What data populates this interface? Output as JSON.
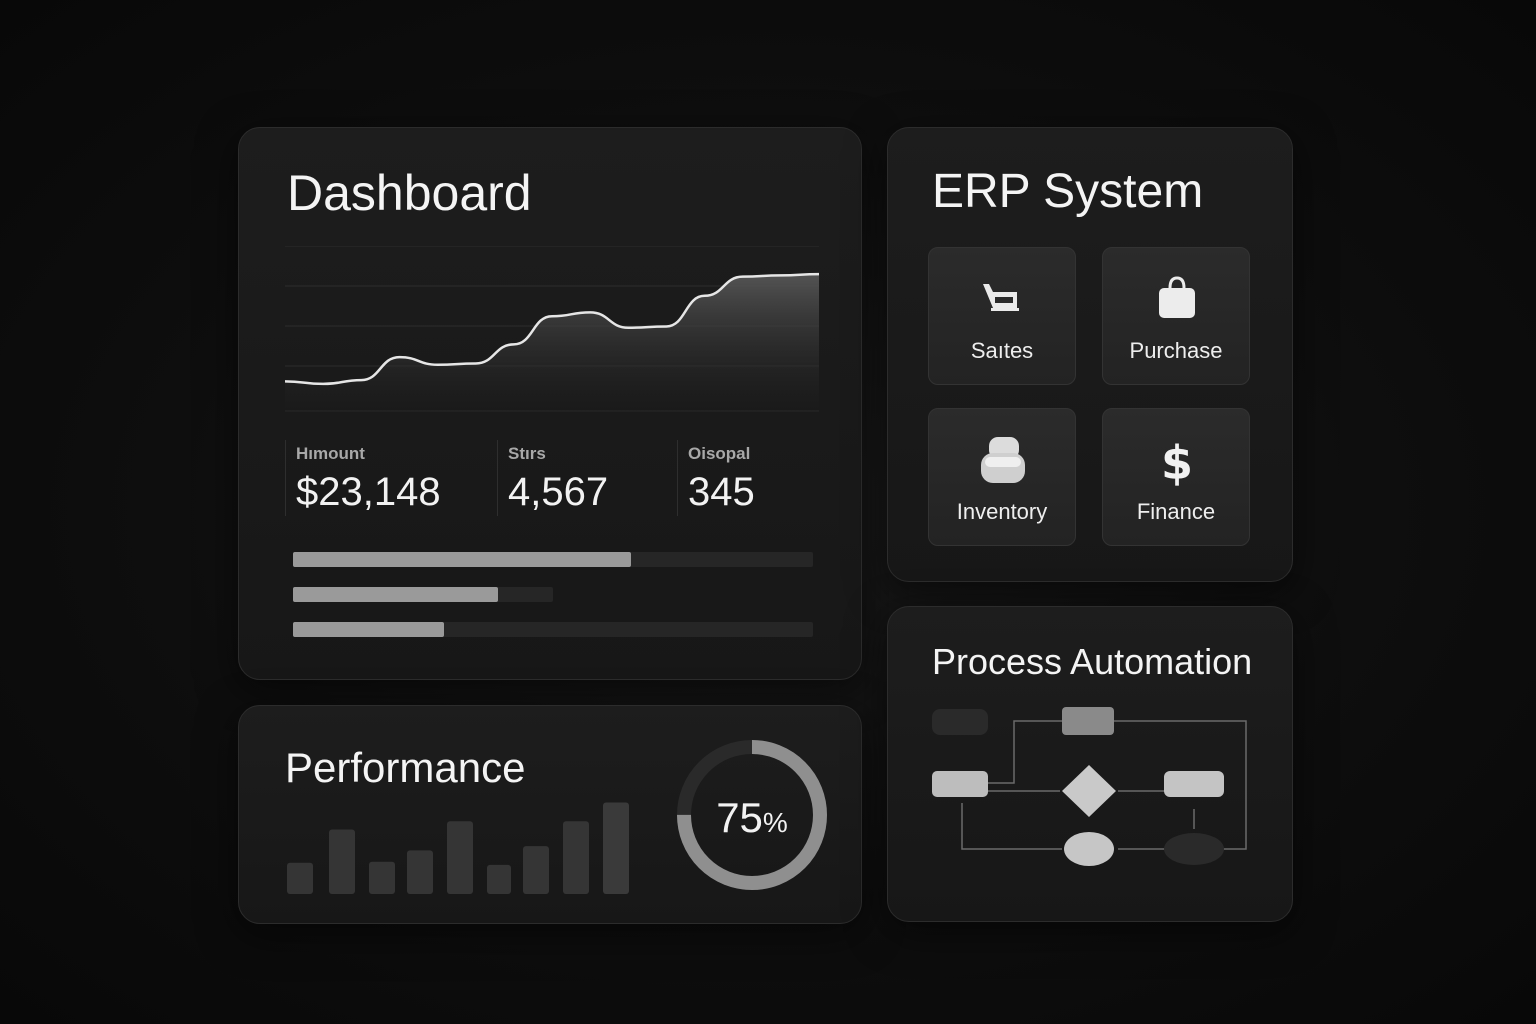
{
  "dashboard": {
    "title": "Dashboard",
    "stats": [
      {
        "label": "Hımount",
        "value": "$23,148"
      },
      {
        "label": "Stırs",
        "value": "4,567"
      },
      {
        "label": "Oisopal",
        "value": "345"
      }
    ],
    "progress": [
      0.65,
      0.79,
      0.29
    ],
    "chart_data": {
      "type": "area",
      "x": [
        0,
        1,
        2,
        3,
        4,
        5,
        6,
        7,
        8,
        9,
        10,
        11,
        12,
        13,
        14
      ],
      "values": [
        24,
        22,
        25,
        43,
        37,
        38,
        53,
        75,
        78,
        66,
        67,
        91,
        106,
        107,
        108
      ],
      "title": "",
      "xlabel": "",
      "ylabel": "",
      "ylim": [
        0,
        130
      ],
      "grid": true
    }
  },
  "erp": {
    "title": "ERP System",
    "modules": [
      {
        "label": "Saıtes",
        "icon": "cart-icon"
      },
      {
        "label": "Purchase",
        "icon": "shopping-bag-icon"
      },
      {
        "label": "Inventory",
        "icon": "box-stack-icon"
      },
      {
        "label": "Finance",
        "icon": "dollar-icon"
      }
    ]
  },
  "performance": {
    "title": "Performance",
    "donut_number": "75",
    "donut_unit": "%",
    "donut_fraction": 0.75,
    "chart_data": {
      "type": "bar",
      "categories": [
        "1",
        "2",
        "3",
        "4",
        "5",
        "6",
        "7",
        "8",
        "9"
      ],
      "values": [
        30,
        62,
        31,
        42,
        70,
        28,
        46,
        70,
        88
      ],
      "title": "",
      "xlabel": "",
      "ylabel": "",
      "ylim": [
        0,
        100
      ]
    }
  },
  "process": {
    "title": "Process Automation"
  }
}
